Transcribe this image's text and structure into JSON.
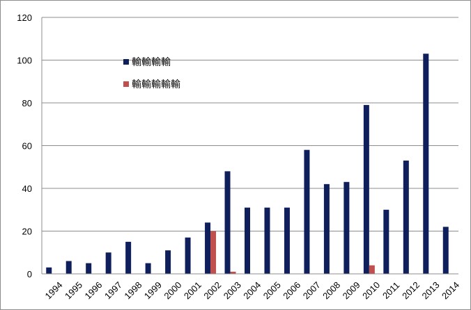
{
  "chart_data": {
    "type": "bar",
    "categories": [
      "1994",
      "1995",
      "1996",
      "1997",
      "1998",
      "1999",
      "2000",
      "2001",
      "2002",
      "2003",
      "2004",
      "2005",
      "2006",
      "2007",
      "2008",
      "2009",
      "2010",
      "2011",
      "2012",
      "2013",
      "2014"
    ],
    "series": [
      {
        "name": "輸輸輸輸",
        "color": "#0f1f5c",
        "values": [
          3,
          6,
          5,
          10,
          15,
          5,
          11,
          17,
          24,
          48,
          31,
          31,
          31,
          58,
          42,
          43,
          79,
          30,
          53,
          103,
          22
        ]
      },
      {
        "name": "輸輸輸輸輸",
        "color": "#c0504d",
        "values": [
          0,
          0,
          0,
          0,
          0,
          0,
          0,
          0,
          20,
          1,
          0,
          0,
          0,
          0,
          0,
          0,
          4,
          0,
          0,
          0,
          0
        ]
      }
    ],
    "ylim": [
      0,
      120
    ],
    "yticks": [
      0,
      20,
      40,
      60,
      80,
      100,
      120
    ],
    "grid": true,
    "legend_position": "upper-left inside plot"
  }
}
